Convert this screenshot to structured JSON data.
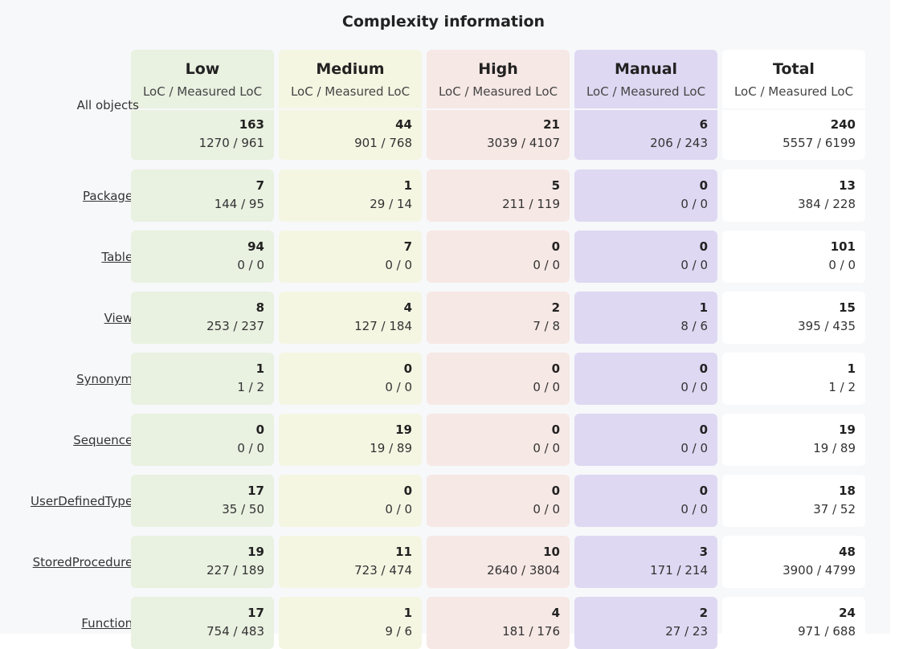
{
  "title": "Complexity information",
  "columns": [
    {
      "key": "low",
      "name": "Low",
      "sub": "LoC / Measured LoC",
      "color": "#e9f1e1"
    },
    {
      "key": "medium",
      "name": "Medium",
      "sub": "LoC / Measured LoC",
      "color": "#f5f6e2"
    },
    {
      "key": "high",
      "name": "High",
      "sub": "LoC / Measured LoC",
      "color": "#f6e8e5"
    },
    {
      "key": "manual",
      "name": "Manual",
      "sub": "LoC / Measured LoC",
      "color": "#ded8f2"
    },
    {
      "key": "total",
      "name": "Total",
      "sub": "LoC / Measured LoC",
      "color": "#ffffff"
    }
  ],
  "all_objects": {
    "label": "All objects",
    "cells": [
      {
        "count": "163",
        "loc": "1270 / 961"
      },
      {
        "count": "44",
        "loc": "901 / 768"
      },
      {
        "count": "21",
        "loc": "3039 / 4107"
      },
      {
        "count": "6",
        "loc": "206 / 243"
      },
      {
        "count": "240",
        "loc": "5557 / 6199"
      }
    ]
  },
  "rows": [
    {
      "label": "Packages",
      "cells": [
        {
          "count": "7",
          "loc": "144 / 95"
        },
        {
          "count": "1",
          "loc": "29 / 14"
        },
        {
          "count": "5",
          "loc": "211 / 119"
        },
        {
          "count": "0",
          "loc": "0 / 0"
        },
        {
          "count": "13",
          "loc": "384 / 228"
        }
      ]
    },
    {
      "label": "Tables",
      "cells": [
        {
          "count": "94",
          "loc": "0 / 0"
        },
        {
          "count": "7",
          "loc": "0 / 0"
        },
        {
          "count": "0",
          "loc": "0 / 0"
        },
        {
          "count": "0",
          "loc": "0 / 0"
        },
        {
          "count": "101",
          "loc": "0 / 0"
        }
      ]
    },
    {
      "label": "Views",
      "cells": [
        {
          "count": "8",
          "loc": "253 / 237"
        },
        {
          "count": "4",
          "loc": "127 / 184"
        },
        {
          "count": "2",
          "loc": "7 / 8"
        },
        {
          "count": "1",
          "loc": "8 / 6"
        },
        {
          "count": "15",
          "loc": "395 / 435"
        }
      ]
    },
    {
      "label": "Synonyms",
      "cells": [
        {
          "count": "1",
          "loc": "1 / 2"
        },
        {
          "count": "0",
          "loc": "0 / 0"
        },
        {
          "count": "0",
          "loc": "0 / 0"
        },
        {
          "count": "0",
          "loc": "0 / 0"
        },
        {
          "count": "1",
          "loc": "1 / 2"
        }
      ]
    },
    {
      "label": "Sequences",
      "cells": [
        {
          "count": "0",
          "loc": "0 / 0"
        },
        {
          "count": "19",
          "loc": "19 / 89"
        },
        {
          "count": "0",
          "loc": "0 / 0"
        },
        {
          "count": "0",
          "loc": "0 / 0"
        },
        {
          "count": "19",
          "loc": "19 / 89"
        }
      ]
    },
    {
      "label": "UserDefinedTypes",
      "cells": [
        {
          "count": "17",
          "loc": "35 / 50"
        },
        {
          "count": "0",
          "loc": "0 / 0"
        },
        {
          "count": "0",
          "loc": "0 / 0"
        },
        {
          "count": "0",
          "loc": "0 / 0"
        },
        {
          "count": "18",
          "loc": "37 / 52"
        }
      ]
    },
    {
      "label": "StoredProcedures",
      "cells": [
        {
          "count": "19",
          "loc": "227 / 189"
        },
        {
          "count": "11",
          "loc": "723 / 474"
        },
        {
          "count": "10",
          "loc": "2640 / 3804"
        },
        {
          "count": "3",
          "loc": "171 / 214"
        },
        {
          "count": "48",
          "loc": "3900 / 4799"
        }
      ]
    },
    {
      "label": "Functions",
      "cells": [
        {
          "count": "17",
          "loc": "754 / 483"
        },
        {
          "count": "1",
          "loc": "9 / 6"
        },
        {
          "count": "4",
          "loc": "181 / 176"
        },
        {
          "count": "2",
          "loc": "27 / 23"
        },
        {
          "count": "24",
          "loc": "971 / 688"
        }
      ]
    }
  ]
}
